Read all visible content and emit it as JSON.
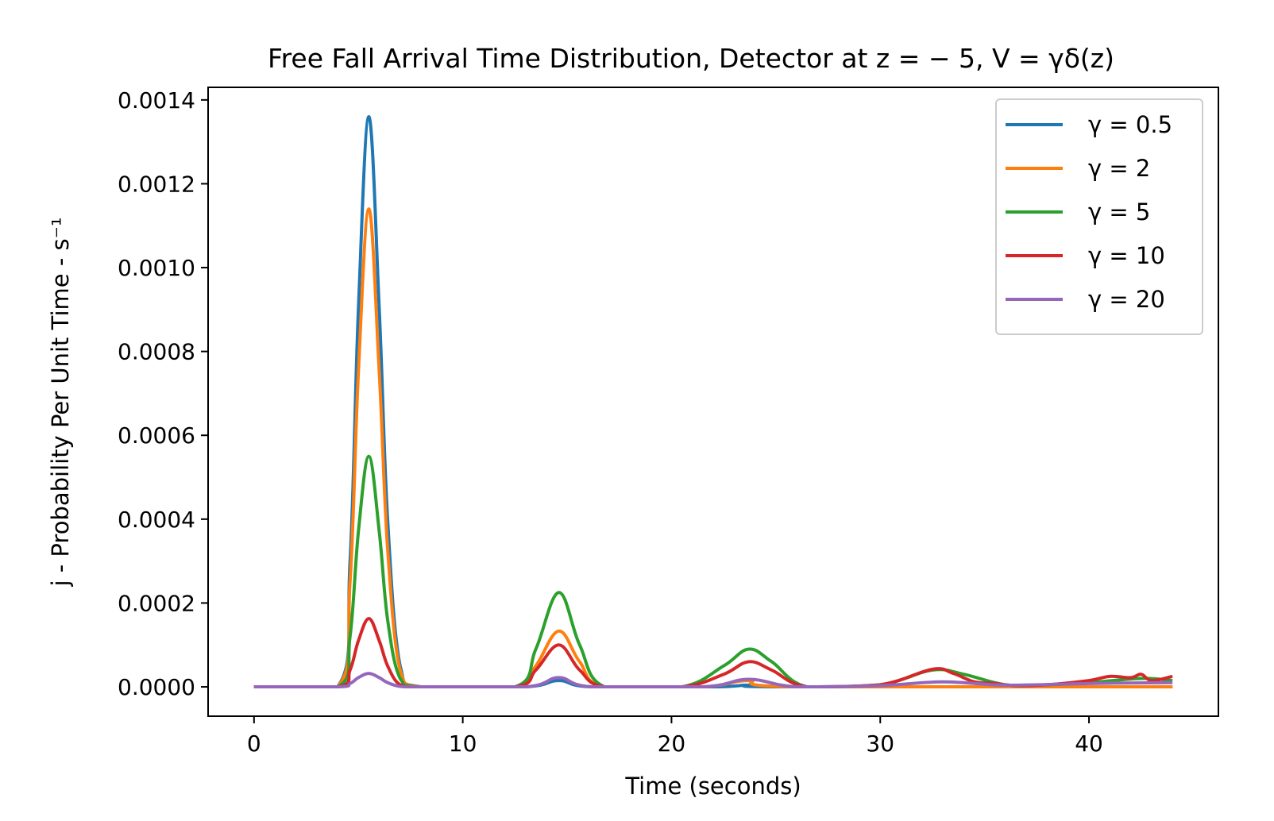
{
  "chart_data": {
    "type": "line",
    "title": "Free Fall Arrival Time Distribution, Detector at z = − 5, V = γδ(z)",
    "xlabel": "Time (seconds)",
    "ylabel": "j - Probability Per Unit Time - s⁻¹",
    "xlim": [
      -2.2,
      46.2
    ],
    "ylim": [
      -7e-05,
      0.00143
    ],
    "xticks": [
      "0",
      "10",
      "20",
      "30",
      "40"
    ],
    "yticks": [
      "0.0000",
      "0.0002",
      "0.0004",
      "0.0006",
      "0.0008",
      "0.0010",
      "0.0012",
      "0.0014"
    ],
    "grid": false,
    "legend_position": "top-right",
    "series": [
      {
        "name": "γ = 0.5",
        "color": "#1f77b4",
        "x": [
          0,
          4,
          4.6,
          5.0,
          5.5,
          6.0,
          6.4,
          7.0,
          8.0,
          13.0,
          14.6,
          16.2,
          22.0,
          23.7,
          25.5,
          44
        ],
        "y": [
          0,
          0,
          0.0003,
          0.0009,
          0.00136,
          0.0009,
          0.0004,
          5e-05,
          0,
          0,
          1.5e-05,
          0,
          0,
          4e-06,
          0,
          0
        ]
      },
      {
        "name": "γ = 2",
        "color": "#ff7f0e",
        "x": [
          0,
          4,
          4.6,
          5.0,
          5.5,
          6.0,
          6.4,
          7.0,
          8.0,
          12.5,
          13.5,
          14.6,
          15.6,
          16.8,
          21.5,
          23.7,
          26.0,
          44
        ],
        "y": [
          0,
          0,
          0.00025,
          0.00075,
          0.00114,
          0.00075,
          0.00033,
          4e-05,
          0,
          0,
          5e-05,
          0.000133,
          6e-05,
          0,
          0,
          1.5e-05,
          0,
          0
        ]
      },
      {
        "name": "γ = 5",
        "color": "#2ca02c",
        "x": [
          0,
          4,
          4.6,
          5.0,
          5.5,
          6.0,
          6.4,
          7.0,
          8.0,
          12.5,
          13.5,
          14.6,
          15.6,
          16.8,
          20.5,
          22.5,
          23.7,
          24.8,
          26.5,
          30,
          32.5,
          34,
          36,
          38,
          40,
          42.5,
          44
        ],
        "y": [
          0,
          0,
          0.00012,
          0.00037,
          0.00055,
          0.00037,
          0.00016,
          2e-05,
          0,
          0,
          9e-05,
          0.000225,
          0.0001,
          0,
          0,
          5e-05,
          9e-05,
          6e-05,
          0,
          5e-06,
          4e-05,
          3e-05,
          5e-06,
          5e-06,
          1e-05,
          2e-05,
          1.5e-05
        ]
      },
      {
        "name": "γ = 10",
        "color": "#d62728",
        "x": [
          0,
          4,
          4.6,
          5.0,
          5.5,
          6.0,
          6.4,
          7.0,
          8.0,
          12.5,
          13.5,
          14.6,
          15.6,
          16.8,
          20.5,
          22.5,
          23.7,
          24.8,
          26.5,
          30,
          32.5,
          33.5,
          34.5,
          35.5,
          36.5,
          38,
          40,
          41,
          42,
          42.5,
          43,
          44
        ],
        "y": [
          0,
          0,
          4e-05,
          0.00011,
          0.000163,
          0.00011,
          5e-05,
          5e-06,
          0,
          0,
          4e-05,
          0.0001,
          4e-05,
          0,
          0,
          3e-05,
          6e-05,
          4e-05,
          0,
          5e-06,
          4.2e-05,
          3.2e-05,
          1.2e-05,
          8e-06,
          3e-06,
          5e-06,
          1.5e-05,
          2.5e-05,
          2.2e-05,
          3e-05,
          1.5e-05,
          2.5e-05
        ]
      },
      {
        "name": "γ = 20",
        "color": "#9467bd",
        "x": [
          0,
          4,
          4.6,
          5.0,
          5.5,
          6.0,
          6.4,
          7.0,
          8.0,
          13.0,
          14.6,
          16.2,
          21.5,
          23.7,
          26.0,
          30,
          33,
          36,
          40,
          44
        ],
        "y": [
          0,
          0,
          8e-06,
          2.2e-05,
          3.2e-05,
          2.2e-05,
          1e-05,
          1e-06,
          0,
          0,
          2.2e-05,
          0,
          0,
          1.8e-05,
          0,
          3e-06,
          1.2e-05,
          4e-06,
          8e-06,
          1e-05
        ]
      }
    ]
  }
}
